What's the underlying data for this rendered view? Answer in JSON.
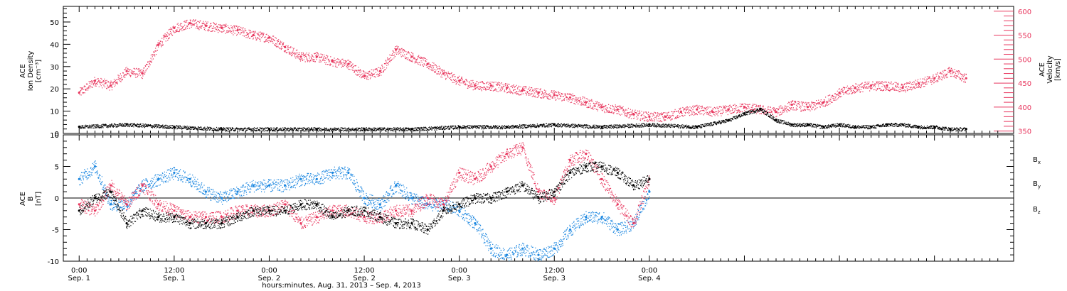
{
  "colors": {
    "black": "#000000",
    "pink": "#e8385f",
    "blue": "#1a86e0"
  },
  "chart_data": [
    {
      "type": "scatter",
      "panel": "top",
      "left_axis": {
        "label_lines": [
          "ACE",
          "Ion Density",
          "[cm⁻³]"
        ],
        "ylim": [
          0,
          57
        ],
        "ticks": [
          0,
          10,
          20,
          30,
          40,
          50
        ]
      },
      "right_axis": {
        "label_lines": [
          "ACE",
          "Velocity",
          "[km/s]"
        ],
        "ylim": [
          345,
          610
        ],
        "ticks": [
          350,
          400,
          450,
          500,
          550,
          600
        ]
      },
      "xlim_hours": [
        -2,
        118
      ],
      "series": [
        {
          "axis": "left",
          "color": "#000000",
          "x": [
            0,
            6,
            12,
            18,
            24,
            30,
            36,
            42,
            48,
            54,
            60,
            66,
            72,
            78,
            82,
            84,
            86,
            88,
            90,
            92,
            94,
            96,
            98,
            100,
            102,
            104,
            106,
            108,
            110,
            112
          ],
          "y": [
            3,
            4,
            3,
            2,
            2,
            2,
            2,
            2,
            3,
            3,
            4,
            3,
            4,
            3,
            6,
            9,
            11,
            6,
            4,
            4,
            3,
            4,
            3,
            3,
            4,
            4,
            3,
            3,
            2,
            2
          ]
        },
        {
          "axis": "right",
          "color": "#e8385f",
          "x": [
            0,
            2,
            4,
            6,
            8,
            10,
            12,
            14,
            16,
            18,
            20,
            22,
            24,
            26,
            28,
            30,
            32,
            34,
            36,
            38,
            40,
            42,
            44,
            46,
            48,
            50,
            52,
            54,
            56,
            58,
            60,
            62,
            64,
            66,
            68,
            70,
            72,
            74,
            76,
            78,
            80,
            82,
            84,
            86,
            88,
            90,
            92,
            94,
            96,
            98,
            100,
            102,
            104,
            106,
            108,
            110,
            112
          ],
          "y": [
            430,
            455,
            445,
            475,
            470,
            530,
            565,
            575,
            570,
            565,
            560,
            550,
            545,
            525,
            505,
            505,
            495,
            490,
            465,
            475,
            520,
            505,
            490,
            470,
            455,
            445,
            445,
            440,
            435,
            430,
            425,
            420,
            410,
            400,
            395,
            385,
            380,
            380,
            390,
            395,
            390,
            395,
            400,
            395,
            390,
            405,
            400,
            410,
            430,
            440,
            445,
            445,
            440,
            450,
            460,
            475,
            460
          ]
        }
      ]
    },
    {
      "type": "scatter",
      "panel": "bottom",
      "left_axis": {
        "label_lines": [
          "ACE",
          "B",
          "[nT]"
        ],
        "ylim": [
          -10,
          10
        ],
        "ticks": [
          -10,
          -5,
          0,
          5,
          10
        ]
      },
      "xlim_hours": [
        -2,
        118
      ],
      "x_ticks": [
        {
          "h": 0,
          "time": "0:00",
          "date": "Sep. 1"
        },
        {
          "h": 12,
          "time": "12:00",
          "date": "Sep. 1"
        },
        {
          "h": 24,
          "time": "0:00",
          "date": "Sep. 2"
        },
        {
          "h": 36,
          "time": "12:00",
          "date": "Sep. 2"
        },
        {
          "h": 48,
          "time": "0:00",
          "date": "Sep. 3"
        },
        {
          "h": 60,
          "time": "12:00",
          "date": "Sep. 3"
        },
        {
          "h": 72,
          "time": "0:00",
          "date": "Sep. 4"
        }
      ],
      "xlabel": "hours:minutes, Aug. 31, 2013 – Sep.  4, 2013",
      "legend": [
        {
          "base": "B",
          "sub": "x",
          "color": "#000000"
        },
        {
          "base": "B",
          "sub": "y",
          "color": "#1a86e0"
        },
        {
          "base": "B",
          "sub": "z",
          "color": "#e8385f"
        }
      ],
      "series": [
        {
          "name": "Bx",
          "color": "#000000",
          "x": [
            0,
            2,
            4,
            6,
            8,
            10,
            12,
            14,
            16,
            18,
            20,
            22,
            24,
            26,
            28,
            30,
            32,
            34,
            36,
            38,
            40,
            42,
            44,
            46,
            48,
            50,
            52,
            54,
            56,
            58,
            60,
            62,
            64,
            66,
            68,
            70,
            72
          ],
          "y": [
            -2,
            0,
            1,
            -4,
            -2,
            -3,
            -3,
            -4,
            -4,
            -4,
            -3,
            -2,
            -2,
            -2,
            -1,
            -1,
            -3,
            -2,
            -2,
            -3,
            -4,
            -4,
            -5,
            -2,
            -1,
            0,
            0,
            1,
            2,
            0,
            1,
            4,
            5,
            5,
            4,
            2,
            3
          ]
        },
        {
          "name": "By",
          "color": "#1a86e0",
          "x": [
            0,
            2,
            4,
            6,
            8,
            10,
            12,
            14,
            16,
            18,
            20,
            22,
            24,
            26,
            28,
            30,
            32,
            34,
            36,
            38,
            40,
            42,
            44,
            46,
            48,
            50,
            52,
            54,
            56,
            58,
            60,
            62,
            64,
            66,
            68,
            70,
            72
          ],
          "y": [
            3,
            5,
            -1,
            -1,
            2,
            3,
            4,
            3,
            1,
            0,
            1,
            2,
            2,
            2,
            3,
            3,
            4,
            4,
            0,
            -1,
            2,
            0,
            -1,
            -1,
            -2,
            -4,
            -8,
            -9,
            -8,
            -9,
            -8,
            -5,
            -3,
            -3,
            -5,
            -4,
            1
          ]
        },
        {
          "name": "Bz",
          "color": "#e8385f",
          "x": [
            0,
            2,
            4,
            6,
            8,
            10,
            12,
            14,
            16,
            18,
            20,
            22,
            24,
            26,
            28,
            30,
            32,
            34,
            36,
            38,
            40,
            42,
            44,
            46,
            48,
            50,
            52,
            54,
            56,
            58,
            60,
            62,
            64,
            66,
            68,
            70,
            72
          ],
          "y": [
            -1,
            -2,
            2,
            -1,
            2,
            -1,
            -2,
            -3,
            -3,
            -3,
            -2,
            -2,
            -2,
            -1,
            -4,
            -3,
            -2,
            -2,
            -3,
            -3,
            -2,
            -2,
            0,
            -1,
            4,
            3,
            5,
            7,
            8,
            1,
            0,
            6,
            7,
            3,
            -1,
            -4,
            3
          ]
        }
      ]
    }
  ]
}
